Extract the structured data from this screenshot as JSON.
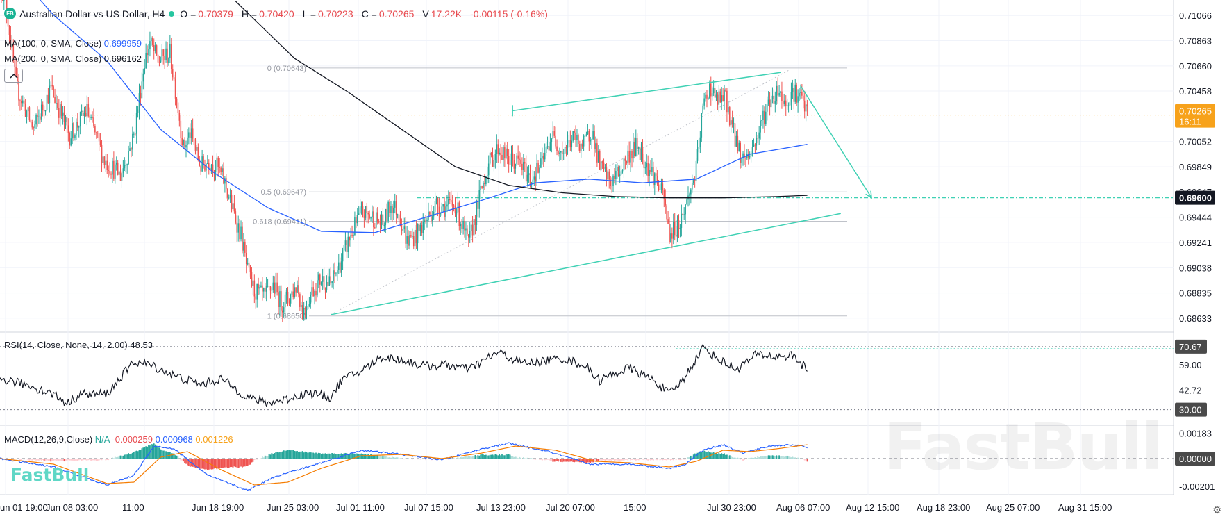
{
  "header": {
    "logo": "FB",
    "title": "Australian Dollar vs US Dollar, H4",
    "o_label": "O =",
    "o": "0.70379",
    "h_label": "H =",
    "h": "0.70420",
    "l_label": "L =",
    "l": "0.70223",
    "c_label": "C =",
    "c": "0.70265",
    "v_label": "V",
    "v": "17.22K",
    "change": "-0.00115 (-0.16%)"
  },
  "indicators": {
    "ma100": {
      "label": "MA(100, 0, SMA, Close)",
      "value": "0.699959",
      "color": "#2962ff"
    },
    "ma200": {
      "label": "MA(200, 0, SMA, Close)",
      "value": "0.696162",
      "color": "#131722"
    },
    "collapse_icon": "chevron-up-icon"
  },
  "rsi_header": {
    "label": "RSI(14, Close, None, 14, 2.00)",
    "value": "48.53"
  },
  "macd_header": {
    "label": "MACD(12,26,9,Close)",
    "na": "N/A",
    "hist": "-0.000259",
    "macd": "0.000968",
    "signal": "0.001226"
  },
  "watermark": "FastBull",
  "settings_icon": "gear-icon",
  "colors": {
    "bull": "#26a69a",
    "bear": "#ef5350",
    "ma100": "#2962ff",
    "ma200": "#131722",
    "channel": "#3fd1b4",
    "accent": "#f7a21b"
  },
  "chart_data": {
    "type": "candlestick",
    "symbol": "AUDUSD",
    "timeframe": "H4",
    "x_tick_labels": [
      "un 01 19:00",
      "Jun 08 03:00",
      "11:00",
      "Jun 18 19:00",
      "Jun 25 03:00",
      "Jul 01 11:00",
      "Jul 07 15:00",
      "Jul 13 23:00",
      "Jul 20 07:00",
      "15:00",
      "Jul 30 23:00",
      "Aug 06 07:00",
      "Aug 12 15:00",
      "Aug 18 23:00",
      "Aug 25 07:00",
      "Aug 31 15:00"
    ],
    "y_tick_labels": [
      "0.71066",
      "0.70863",
      "0.70660",
      "0.70458",
      "0.70052",
      "0.69849",
      "0.69444",
      "0.69241",
      "0.69038",
      "0.68835",
      "0.68633"
    ],
    "ylim": [
      0.6852,
      0.7119
    ],
    "price_label": {
      "value": "0.70265",
      "countdown": "16:11"
    },
    "target_label": "0.69600",
    "hidden_tick": "0.69647",
    "fib_levels": [
      {
        "label": "0 (0.70643)",
        "value": 0.70643
      },
      {
        "label": "0.5 (0.69647)",
        "value": 0.69647
      },
      {
        "label": "0.618 (0.69411)",
        "value": 0.69411
      },
      {
        "label": "1 (0.68650)",
        "value": 0.6865
      }
    ],
    "candles_path": [
      [
        0,
        0.7135
      ],
      [
        5,
        0.7112
      ],
      [
        12,
        0.705
      ],
      [
        25,
        0.7015
      ],
      [
        38,
        0.7048
      ],
      [
        52,
        0.701
      ],
      [
        65,
        0.703
      ],
      [
        78,
        0.699
      ],
      [
        90,
        0.6978
      ],
      [
        100,
        0.701
      ],
      [
        108,
        0.707
      ],
      [
        112,
        0.7085
      ],
      [
        118,
        0.707
      ],
      [
        127,
        0.7076
      ],
      [
        132,
        0.704
      ],
      [
        137,
        0.7
      ],
      [
        142,
        0.7012
      ],
      [
        150,
        0.6985
      ],
      [
        156,
        0.699
      ],
      [
        162,
        0.6985
      ],
      [
        168,
        0.6972
      ],
      [
        174,
        0.695
      ],
      [
        180,
        0.693
      ],
      [
        185,
        0.69
      ],
      [
        190,
        0.6885
      ],
      [
        198,
        0.688
      ],
      [
        204,
        0.689
      ],
      [
        210,
        0.6875
      ],
      [
        216,
        0.688
      ],
      [
        222,
        0.689
      ],
      [
        226,
        0.6868
      ],
      [
        233,
        0.6885
      ],
      [
        240,
        0.6895
      ],
      [
        247,
        0.689
      ],
      [
        255,
        0.691
      ],
      [
        262,
        0.693
      ],
      [
        270,
        0.6948
      ],
      [
        278,
        0.6945
      ],
      [
        286,
        0.6938
      ],
      [
        292,
        0.6955
      ],
      [
        298,
        0.6948
      ],
      [
        304,
        0.6925
      ],
      [
        311,
        0.693
      ],
      [
        318,
        0.6942
      ],
      [
        326,
        0.6955
      ],
      [
        334,
        0.6952
      ],
      [
        340,
        0.6955
      ],
      [
        346,
        0.6935
      ],
      [
        350,
        0.6922
      ],
      [
        358,
        0.696
      ],
      [
        364,
        0.6985
      ],
      [
        372,
        0.7
      ],
      [
        380,
        0.699
      ],
      [
        388,
        0.6988
      ],
      [
        396,
        0.6975
      ],
      [
        404,
        0.6985
      ],
      [
        412,
        0.701
      ],
      [
        420,
        0.6998
      ],
      [
        428,
        0.7008
      ],
      [
        436,
        0.7002
      ],
      [
        442,
        0.7015
      ],
      [
        448,
        0.6985
      ],
      [
        456,
        0.6972
      ],
      [
        463,
        0.6982
      ],
      [
        470,
        0.6995
      ],
      [
        476,
        0.7002
      ],
      [
        484,
        0.6985
      ],
      [
        490,
        0.6975
      ],
      [
        496,
        0.6958
      ],
      [
        500,
        0.693
      ],
      [
        504,
        0.6935
      ],
      [
        508,
        0.694
      ],
      [
        514,
        0.696
      ],
      [
        520,
        0.6982
      ],
      [
        525,
        0.7032
      ],
      [
        530,
        0.705
      ],
      [
        535,
        0.7038
      ],
      [
        542,
        0.704
      ],
      [
        548,
        0.7012
      ],
      [
        554,
        0.6992
      ],
      [
        560,
        0.6995
      ],
      [
        566,
        0.701
      ],
      [
        570,
        0.7025
      ],
      [
        576,
        0.704
      ],
      [
        582,
        0.7048
      ],
      [
        586,
        0.7035
      ],
      [
        592,
        0.7046
      ],
      [
        598,
        0.704
      ],
      [
        603,
        0.7028
      ]
    ],
    "ma100_path": [
      [
        0,
        0.7155
      ],
      [
        40,
        0.7107
      ],
      [
        80,
        0.707
      ],
      [
        120,
        0.7015
      ],
      [
        160,
        0.698
      ],
      [
        200,
        0.6952
      ],
      [
        240,
        0.6933
      ],
      [
        280,
        0.6932
      ],
      [
        320,
        0.6945
      ],
      [
        360,
        0.6958
      ],
      [
        400,
        0.6972
      ],
      [
        440,
        0.6975
      ],
      [
        480,
        0.6972
      ],
      [
        520,
        0.6975
      ],
      [
        560,
        0.6995
      ],
      [
        603,
        0.7003
      ]
    ],
    "ma200_path": [
      [
        176,
        0.7118
      ],
      [
        220,
        0.7072
      ],
      [
        260,
        0.7045
      ],
      [
        300,
        0.7015
      ],
      [
        340,
        0.6985
      ],
      [
        380,
        0.697
      ],
      [
        420,
        0.6964
      ],
      [
        460,
        0.6961
      ],
      [
        500,
        0.696
      ],
      [
        540,
        0.696
      ],
      [
        580,
        0.6961
      ],
      [
        603,
        0.6962
      ]
    ],
    "channel_upper": [
      [
        [
          383,
          0.703
        ],
        [
          630,
          0.7068
        ]
      ]
    ],
    "channel_lower": [
      [
        [
          247,
          0.6866
        ],
        [
          673,
          0.6957
        ]
      ]
    ],
    "target_level": 0.696,
    "projection_arrow": [
      [
        598,
        0.705
      ],
      [
        651,
        0.696
      ]
    ],
    "fib_connector": [
      [
        247,
        0.6866
      ],
      [
        590,
        0.7063
      ]
    ],
    "rsi": {
      "ylim": [
        20,
        80
      ],
      "y_tick_labels": [
        "70.67",
        "59.00",
        "42.72",
        "30.00"
      ],
      "levels": [
        70.67,
        30.0
      ],
      "path": [
        [
          0,
          50
        ],
        [
          20,
          46
        ],
        [
          40,
          40
        ],
        [
          50,
          34
        ],
        [
          60,
          40
        ],
        [
          80,
          40
        ],
        [
          100,
          61
        ],
        [
          112,
          59
        ],
        [
          130,
          52
        ],
        [
          150,
          46
        ],
        [
          165,
          50
        ],
        [
          175,
          44
        ],
        [
          185,
          38
        ],
        [
          200,
          34
        ],
        [
          215,
          37
        ],
        [
          230,
          41
        ],
        [
          247,
          38
        ],
        [
          255,
          49
        ],
        [
          270,
          55
        ],
        [
          285,
          64
        ],
        [
          300,
          62
        ],
        [
          318,
          58
        ],
        [
          334,
          59
        ],
        [
          350,
          56
        ],
        [
          372,
          67
        ],
        [
          390,
          60
        ],
        [
          404,
          61
        ],
        [
          420,
          63
        ],
        [
          436,
          59
        ],
        [
          448,
          49
        ],
        [
          470,
          57
        ],
        [
          490,
          48
        ],
        [
          500,
          40
        ],
        [
          510,
          49
        ],
        [
          525,
          70
        ],
        [
          536,
          63
        ],
        [
          550,
          56
        ],
        [
          566,
          66
        ],
        [
          578,
          64
        ],
        [
          592,
          65
        ],
        [
          603,
          56
        ]
      ]
    },
    "macd": {
      "ylim": [
        -0.0026,
        0.0024
      ],
      "y_tick_labels": [
        "0.00183",
        "0.00000",
        "-0.00201"
      ],
      "zero_label": "0.00000",
      "macd_path": [
        [
          0,
          0.0
        ],
        [
          40,
          -0.0006
        ],
        [
          80,
          -0.0019
        ],
        [
          100,
          -0.0012
        ],
        [
          115,
          0.0009
        ],
        [
          130,
          0.0007
        ],
        [
          155,
          -0.0012
        ],
        [
          185,
          -0.0023
        ],
        [
          205,
          -0.0013
        ],
        [
          230,
          -0.0006
        ],
        [
          270,
          0.0006
        ],
        [
          300,
          0.0003
        ],
        [
          330,
          -0.0001
        ],
        [
          360,
          0.0007
        ],
        [
          380,
          0.0011
        ],
        [
          410,
          0.0005
        ],
        [
          440,
          -0.0004
        ],
        [
          470,
          -0.0004
        ],
        [
          500,
          -0.0007
        ],
        [
          512,
          -0.0004
        ],
        [
          525,
          0.0006
        ],
        [
          540,
          0.001
        ],
        [
          555,
          0.0004
        ],
        [
          575,
          0.0009
        ],
        [
          592,
          0.001
        ],
        [
          603,
          0.0008
        ]
      ],
      "signal_path": [
        [
          0,
          0.0
        ],
        [
          40,
          -0.0004
        ],
        [
          80,
          -0.0018
        ],
        [
          100,
          -0.0017
        ],
        [
          120,
          0.0001
        ],
        [
          140,
          0.0005
        ],
        [
          165,
          -0.0008
        ],
        [
          190,
          -0.0019
        ],
        [
          215,
          -0.0017
        ],
        [
          240,
          -0.0007
        ],
        [
          270,
          0.0002
        ],
        [
          300,
          0.0003
        ],
        [
          330,
          0.0
        ],
        [
          360,
          0.0004
        ],
        [
          385,
          0.0009
        ],
        [
          415,
          0.0006
        ],
        [
          445,
          -0.0002
        ],
        [
          470,
          -0.0003
        ],
        [
          500,
          -0.0006
        ],
        [
          520,
          -0.0002
        ],
        [
          540,
          0.0006
        ],
        [
          560,
          0.0005
        ],
        [
          580,
          0.0007
        ],
        [
          603,
          0.001
        ]
      ]
    }
  }
}
